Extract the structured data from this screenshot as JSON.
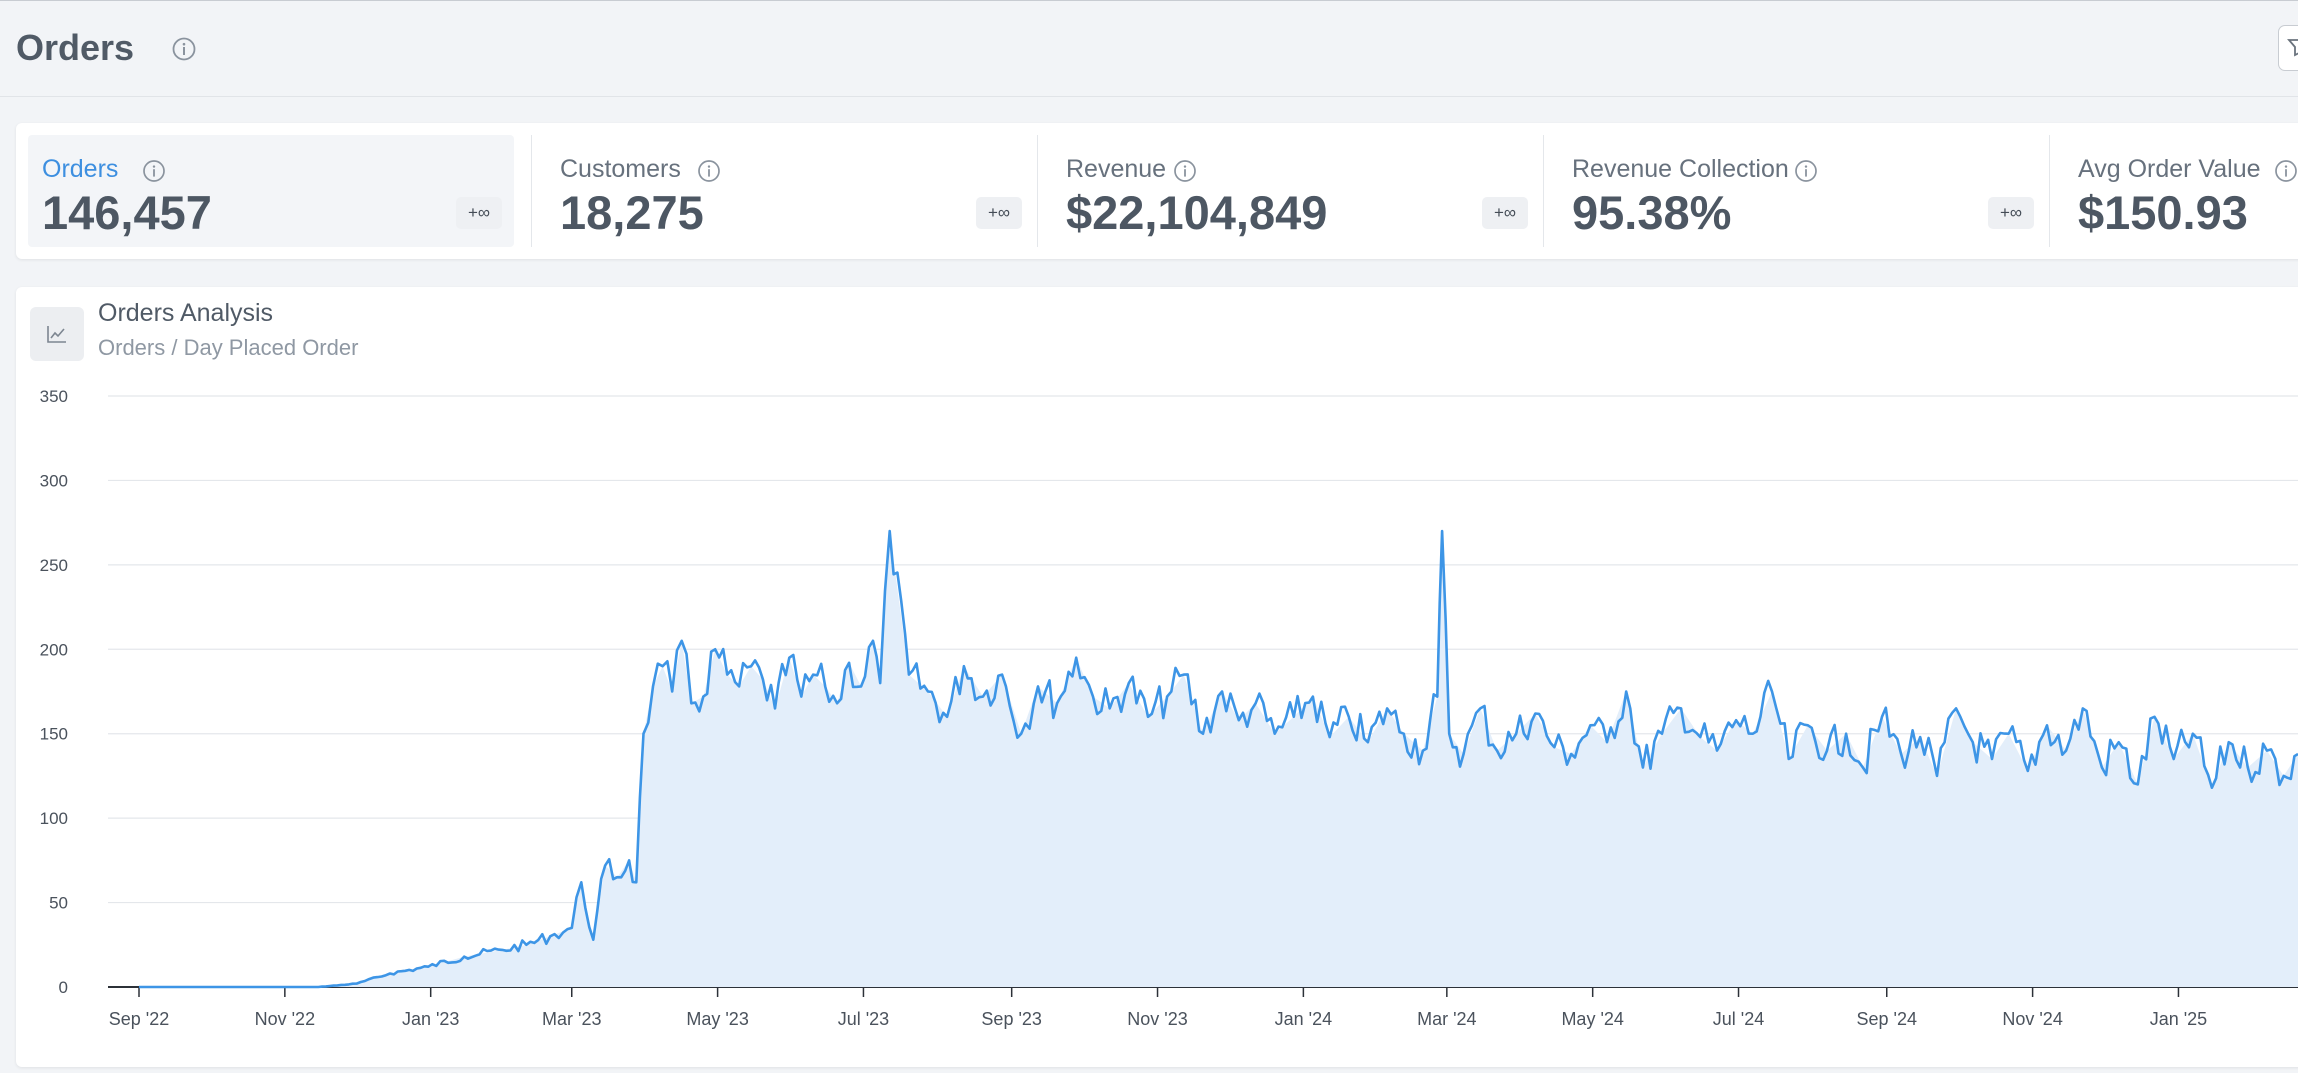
{
  "page": {
    "title": "Orders",
    "title_info_icon": "info-icon",
    "filter_icon": "filter-icon"
  },
  "metrics": [
    {
      "label": "Orders",
      "value": "146,457",
      "delta": "+∞",
      "active": true
    },
    {
      "label": "Customers",
      "value": "18,275",
      "delta": "+∞",
      "active": false
    },
    {
      "label": "Revenue",
      "value": "$22,104,849",
      "delta": "+∞",
      "active": false
    },
    {
      "label": "Revenue Collection",
      "value": "95.38%",
      "delta": "+∞",
      "active": false
    },
    {
      "label": "Avg Order Value",
      "value": "$150.93",
      "delta": "+∞",
      "active": false
    }
  ],
  "chart_card": {
    "title": "Orders Analysis",
    "subtitle": "Orders / Day Placed Order",
    "icon": "line-chart-icon"
  },
  "colors": {
    "accent": "#3d8fe0",
    "line": "#3d95e6",
    "area": "#e3eefa",
    "grid": "#e4e7eb"
  },
  "chart_data": {
    "type": "area",
    "title": "",
    "xlabel": "",
    "ylabel": "",
    "ylim": [
      0,
      350
    ],
    "yticks": [
      0,
      50,
      100,
      150,
      200,
      250,
      300,
      350
    ],
    "xlim": [
      "2022-09-01",
      "2025-02-20"
    ],
    "xticks": [
      {
        "date": "2022-09-01",
        "label": "Sep '22"
      },
      {
        "date": "2022-11-01",
        "label": "Nov '22"
      },
      {
        "date": "2023-01-01",
        "label": "Jan '23"
      },
      {
        "date": "2023-03-01",
        "label": "Mar '23"
      },
      {
        "date": "2023-05-01",
        "label": "May '23"
      },
      {
        "date": "2023-07-01",
        "label": "Jul '23"
      },
      {
        "date": "2023-09-01",
        "label": "Sep '23"
      },
      {
        "date": "2023-11-01",
        "label": "Nov '23"
      },
      {
        "date": "2024-01-01",
        "label": "Jan '24"
      },
      {
        "date": "2024-03-01",
        "label": "Mar '24"
      },
      {
        "date": "2024-05-01",
        "label": "May '24"
      },
      {
        "date": "2024-07-01",
        "label": "Jul '24"
      },
      {
        "date": "2024-09-01",
        "label": "Sep '24"
      },
      {
        "date": "2024-11-01",
        "label": "Nov '24"
      },
      {
        "date": "2025-01-01",
        "label": "Jan '25"
      }
    ],
    "series": [
      {
        "x": [
          "2022-09-01",
          "2022-11-15",
          "2022-12-01",
          "2022-12-15",
          "2022-12-31",
          "2023-01-15",
          "2023-01-31",
          "2023-02-10",
          "2023-02-20",
          "2023-03-01",
          "2023-03-05",
          "2023-03-10",
          "2023-03-15",
          "2023-03-20",
          "2023-03-25",
          "2023-03-28",
          "2023-03-31",
          "2023-04-04",
          "2023-04-08",
          "2023-04-12",
          "2023-04-16",
          "2023-04-20",
          "2023-04-25",
          "2023-04-30",
          "2023-05-05",
          "2023-05-10",
          "2023-05-15",
          "2023-05-20",
          "2023-05-25",
          "2023-05-31",
          "2023-06-05",
          "2023-06-10",
          "2023-06-15",
          "2023-06-20",
          "2023-06-25",
          "2023-06-30",
          "2023-07-05",
          "2023-07-08",
          "2023-07-12",
          "2023-07-20",
          "2023-07-28",
          "2023-08-05",
          "2023-08-12",
          "2023-08-20",
          "2023-08-28",
          "2023-09-05",
          "2023-09-12",
          "2023-09-20",
          "2023-09-28",
          "2023-10-05",
          "2023-10-12",
          "2023-10-20",
          "2023-10-28",
          "2023-11-05",
          "2023-11-12",
          "2023-11-20",
          "2023-11-28",
          "2023-12-05",
          "2023-12-12",
          "2023-12-20",
          "2023-12-28",
          "2024-01-05",
          "2024-01-12",
          "2024-01-20",
          "2024-01-28",
          "2024-02-05",
          "2024-02-12",
          "2024-02-20",
          "2024-02-26",
          "2024-02-28",
          "2024-03-02",
          "2024-03-08",
          "2024-03-15",
          "2024-03-22",
          "2024-03-30",
          "2024-04-07",
          "2024-04-15",
          "2024-04-22",
          "2024-04-30",
          "2024-05-07",
          "2024-05-15",
          "2024-05-22",
          "2024-05-30",
          "2024-06-07",
          "2024-06-15",
          "2024-06-22",
          "2024-06-30",
          "2024-07-07",
          "2024-07-15",
          "2024-07-22",
          "2024-07-30",
          "2024-08-07",
          "2024-08-15",
          "2024-08-22",
          "2024-08-30",
          "2024-09-07",
          "2024-09-15",
          "2024-09-22",
          "2024-09-30",
          "2024-10-07",
          "2024-10-15",
          "2024-10-22",
          "2024-10-30",
          "2024-11-07",
          "2024-11-15",
          "2024-11-22",
          "2024-11-30",
          "2024-12-07",
          "2024-12-15",
          "2024-12-22",
          "2024-12-30",
          "2025-01-07",
          "2025-01-15",
          "2025-01-22",
          "2025-01-30",
          "2025-02-07",
          "2025-02-14",
          "2025-02-20"
        ],
        "y": [
          0,
          0,
          2,
          8,
          12,
          18,
          22,
          25,
          30,
          35,
          62,
          28,
          72,
          65,
          75,
          62,
          150,
          178,
          190,
          175,
          205,
          168,
          172,
          200,
          185,
          178,
          190,
          182,
          165,
          195,
          172,
          185,
          178,
          168,
          192,
          178,
          205,
          180,
          270,
          185,
          175,
          160,
          190,
          172,
          185,
          150,
          178,
          168,
          195,
          172,
          165,
          180,
          160,
          172,
          185,
          150,
          175,
          158,
          168,
          150,
          160,
          172,
          148,
          160,
          145,
          165,
          150,
          140,
          172,
          270,
          150,
          138,
          165,
          140,
          150,
          162,
          142,
          138,
          155,
          145,
          175,
          130,
          150,
          165,
          148,
          140,
          158,
          150,
          175,
          135,
          155,
          140,
          150,
          130,
          160,
          138,
          148,
          125,
          165,
          145,
          135,
          150,
          128,
          155,
          140,
          165,
          130,
          145,
          120,
          160,
          135,
          150,
          118,
          145,
          130,
          140,
          125,
          138
        ]
      }
    ]
  }
}
